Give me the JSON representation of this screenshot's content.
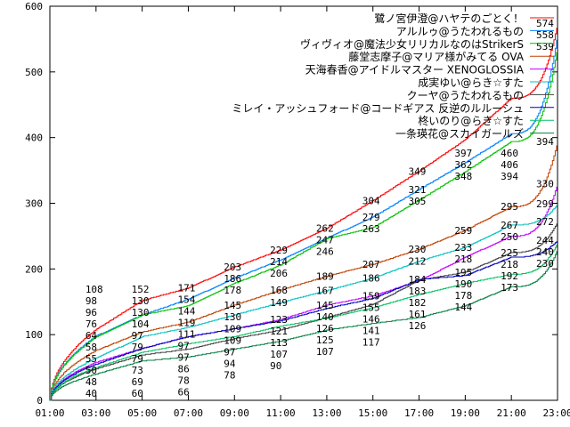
{
  "chart_data": {
    "type": "line",
    "title": "",
    "xlabel": "",
    "ylabel": "",
    "x_hours": [
      1,
      3,
      5,
      7,
      9,
      11,
      13,
      15,
      17,
      19,
      21,
      23
    ],
    "x_tick_labels": [
      "01:00",
      "03:00",
      "05:00",
      "07:00",
      "09:00",
      "11:00",
      "13:00",
      "15:00",
      "17:00",
      "19:00",
      "21:00",
      "23:00"
    ],
    "y_ticks": [
      0,
      100,
      200,
      300,
      400,
      500,
      600
    ],
    "ylim": [
      0,
      600
    ],
    "xlim": [
      1,
      23
    ],
    "grid": false,
    "legend_position": "top-right",
    "series": [
      {
        "name": "鷺ノ宮伊澄@ハヤテのごとく！",
        "color": "#ff0000",
        "values": [
          0,
          108,
          152,
          171,
          203,
          229,
          262,
          304,
          349,
          397,
          460,
          574
        ]
      },
      {
        "name": "アルルゥ@うたわれるもの",
        "color": "#0080ff",
        "values": [
          0,
          98,
          130,
          154,
          186,
          214,
          247,
          279,
          321,
          362,
          406,
          558
        ]
      },
      {
        "name": "ヴィヴィオ@魔法少女リリカルなのはStrikerS",
        "color": "#00c000",
        "values": [
          0,
          96,
          130,
          144,
          178,
          206,
          246,
          263,
          305,
          348,
          394,
          539
        ]
      },
      {
        "name": "藤堂志摩子@マリア様がみてる OVA",
        "color": "#c04000",
        "values": [
          0,
          76,
          104,
          119,
          145,
          168,
          189,
          207,
          230,
          259,
          295,
          394
        ]
      },
      {
        "name": "天海春香@アイドルマスター XENOGLOSSIA",
        "color": "#c000ff",
        "values": [
          0,
          58,
          79,
          97,
          109,
          123,
          145,
          159,
          182,
          218,
          250,
          330
        ]
      },
      {
        "name": "成実ゆい@らき☆すた",
        "color": "#00c0c0",
        "values": [
          0,
          64,
          97,
          111,
          130,
          149,
          167,
          186,
          212,
          233,
          267,
          299
        ]
      },
      {
        "name": "クーヤ@うたわれるもの",
        "color": "#404040",
        "values": [
          0,
          48,
          69,
          78,
          94,
          107,
          126,
          146,
          183,
          195,
          225,
          272
        ]
      },
      {
        "name": "ミレイ・アッシュフォード@コードギアス 反逆のルルーシュ",
        "color": "#0000c0",
        "values": [
          0,
          55,
          79,
          97,
          109,
          121,
          140,
          155,
          184,
          190,
          218,
          244
        ]
      },
      {
        "name": "柊いのり@らき☆すた",
        "color": "#00c060",
        "values": [
          0,
          50,
          73,
          86,
          97,
          113,
          125,
          141,
          161,
          178,
          192,
          240
        ]
      },
      {
        "name": "一条瑛花@スカイガールズ",
        "color": "#008040",
        "values": [
          0,
          40,
          60,
          66,
          78,
          90,
          107,
          117,
          126,
          144,
          173,
          230
        ]
      }
    ]
  }
}
